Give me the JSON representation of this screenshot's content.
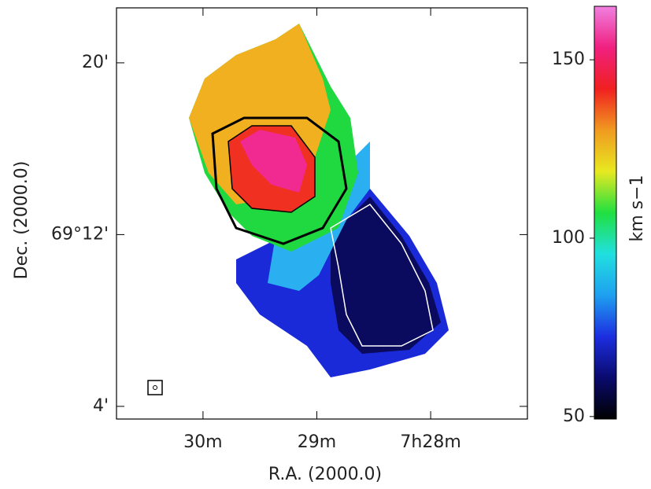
{
  "chart_data": {
    "type": "image",
    "xlabel": "R.A. (2000.0)",
    "ylabel": "Dec. (2000.0)",
    "colorbar_label": "km s−1",
    "xlim": [
      30.76,
      27.15
    ],
    "xticks": [
      {
        "value": 30,
        "label": "30m"
      },
      {
        "value": 29,
        "label": "29m"
      },
      {
        "value": 28,
        "label": "7h28m"
      }
    ],
    "ylim": [
      3.41,
      22.56
    ],
    "yticks": [
      {
        "value": 20,
        "label": "20'"
      },
      {
        "value": 12,
        "label": "69°12'"
      },
      {
        "value": 4,
        "label": "4'"
      }
    ],
    "zlim": [
      49.3,
      165
    ],
    "zticks": [
      50,
      100,
      150
    ],
    "colormap": [
      "#000000",
      "#0a0a6e",
      "#1c2ee0",
      "#1fa0f0",
      "#20e0e0",
      "#20e040",
      "#e8e820",
      "#f09a20",
      "#f02020",
      "#f02080",
      "#f080e0"
    ]
  }
}
